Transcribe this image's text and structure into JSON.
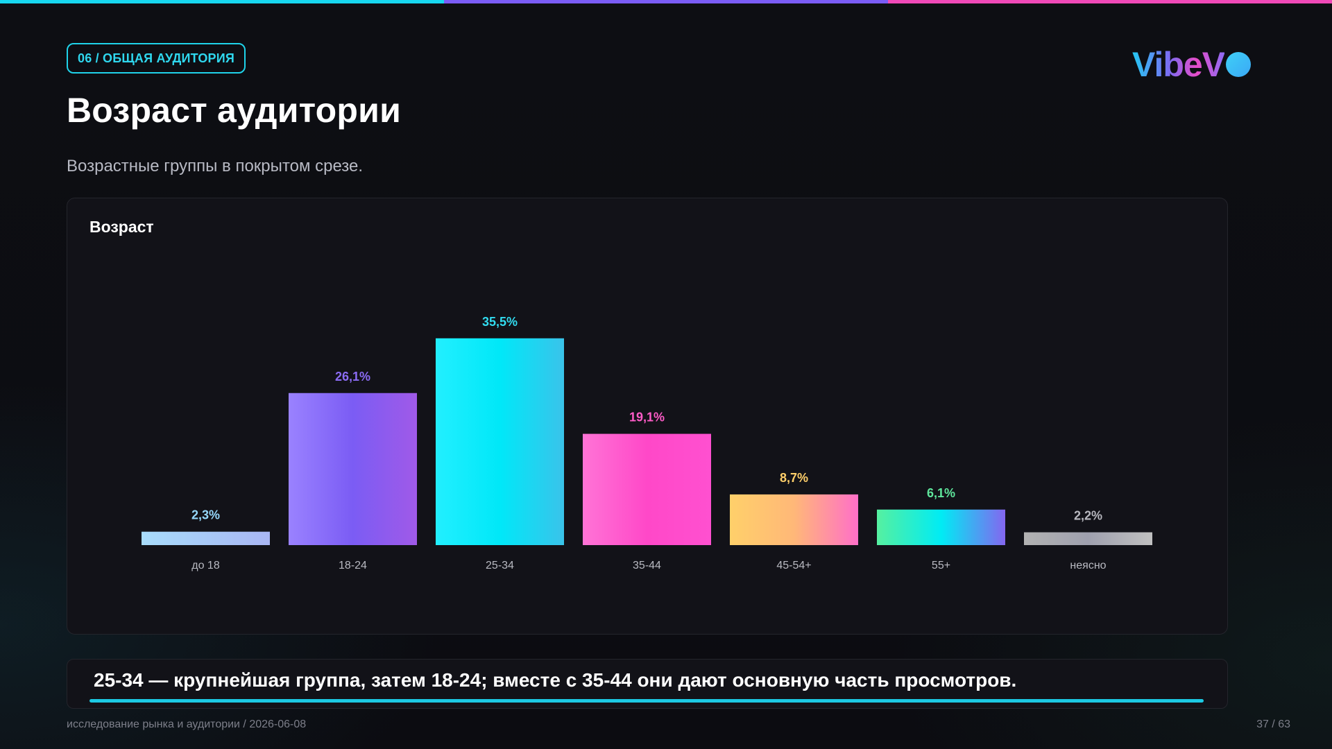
{
  "header": {
    "section_tag": "06 / ОБЩАЯ АУДИТОРИЯ",
    "title": "Возраст аудитории",
    "subtitle": "Возрастные группы в покрытом срезе.",
    "logo_text": "VibeV"
  },
  "chart_data": {
    "type": "bar",
    "title": "Возраст",
    "categories": [
      "до 18",
      "18-24",
      "25-34",
      "35-44",
      "45-54+",
      "55+",
      "неясно"
    ],
    "values": [
      2.3,
      26.1,
      35.5,
      19.1,
      8.7,
      6.1,
      2.2
    ],
    "value_labels": [
      "2,3%",
      "26,1%",
      "35,5%",
      "19,1%",
      "8,7%",
      "6,1%",
      "2,2%"
    ],
    "colors": [
      [
        "#a8dcfb",
        "#a9b6f3"
      ],
      [
        "#9a82ff",
        "#7b5cf4",
        "#a05ae8"
      ],
      [
        "#22efff",
        "#00e8f8",
        "#3ac3ea"
      ],
      [
        "#ff74d6",
        "#ff48c8",
        "#ff50d0"
      ],
      [
        "#ffd06a",
        "#ffb878",
        "#ff6fc8"
      ],
      [
        "#56f0a0",
        "#00ecf4",
        "#8466f0"
      ],
      [
        "#b2b2b2",
        "#9fa0ae",
        "#c0c0c0"
      ]
    ],
    "label_colors": [
      "#96d8fb",
      "#8b6cf4",
      "#31dcf0",
      "#ff5cc8",
      "#ffcf6a",
      "#5fe69c",
      "#b9b9c0"
    ],
    "grid": false,
    "legend": "none"
  },
  "insight": {
    "text": "25-34 — крупнейшая группа, затем 18-24; вместе с 35-44 они дают основную часть просмотров."
  },
  "footer": {
    "source": "исследование рынка и аудитории / 2026-06-08",
    "page": "37 / 63"
  }
}
